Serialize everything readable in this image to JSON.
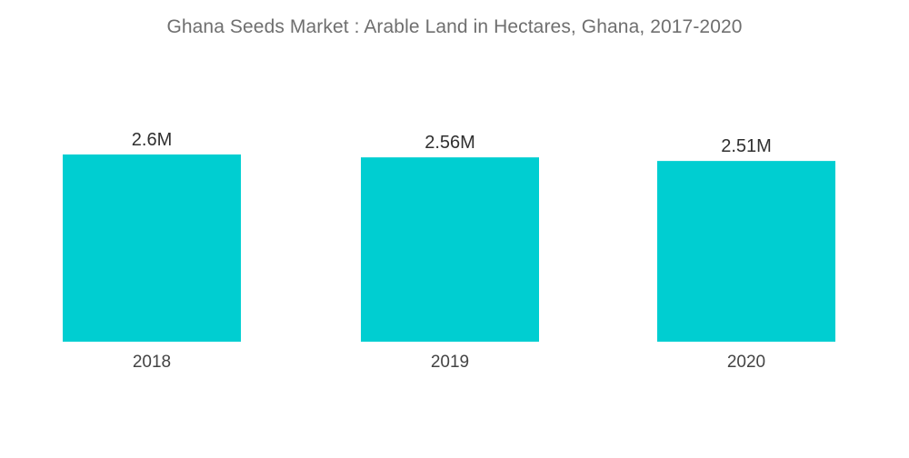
{
  "chart_data": {
    "type": "bar",
    "title": "Ghana Seeds Market : Arable Land in Hectares, Ghana, 2017-2020",
    "xlabel": "",
    "ylabel": "",
    "categories": [
      "2018",
      "2019",
      "2020"
    ],
    "values": [
      2600000,
      2560000,
      2510000
    ],
    "data_labels": [
      "2.6M",
      "2.56M",
      "2.51M"
    ],
    "ylim": [
      0,
      2600000
    ],
    "grid": false,
    "legend": "none",
    "bar_color": "#00ced1"
  }
}
